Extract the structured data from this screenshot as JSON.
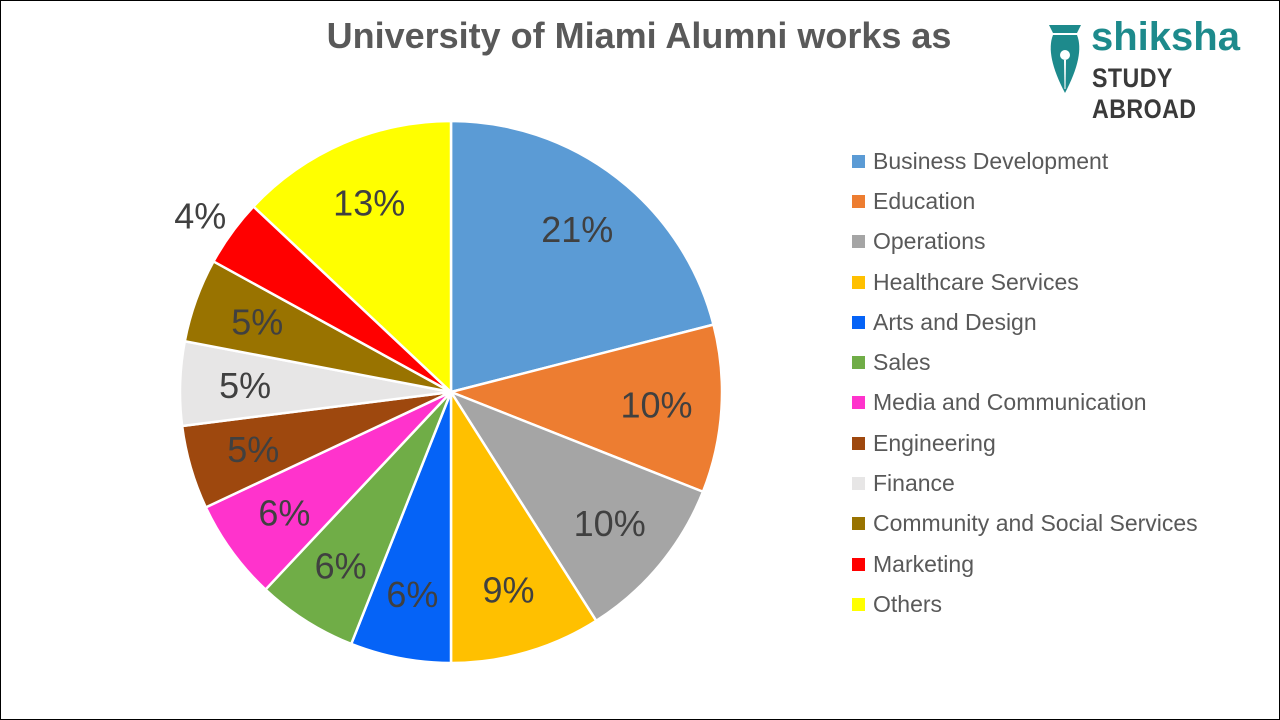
{
  "chart_data": {
    "type": "pie",
    "title": "University of Miami Alumni works as",
    "legend_position": "right",
    "slices": [
      {
        "label": "Business Development",
        "value": 21,
        "display": "21%",
        "color": "#5b9bd5"
      },
      {
        "label": "Education",
        "value": 10,
        "display": "10%",
        "color": "#ed7d31"
      },
      {
        "label": "Operations",
        "value": 10,
        "display": "10%",
        "color": "#a5a5a5"
      },
      {
        "label": "Healthcare Services",
        "value": 9,
        "display": "9%",
        "color": "#ffc000"
      },
      {
        "label": "Arts and Design",
        "value": 6,
        "display": "6%",
        "color": "#0563f7"
      },
      {
        "label": "Sales",
        "value": 6,
        "display": "6%",
        "color": "#70ad47"
      },
      {
        "label": "Media and Communication",
        "value": 6,
        "display": "6%",
        "color": "#ff33cc"
      },
      {
        "label": "Engineering",
        "value": 5,
        "display": "5%",
        "color": "#9e480e"
      },
      {
        "label": "Finance",
        "value": 5,
        "display": "5%",
        "color": "#e7e6e6"
      },
      {
        "label": "Community and Social Services",
        "value": 5,
        "display": "5%",
        "color": "#997300"
      },
      {
        "label": "Marketing",
        "value": 4,
        "display": "4%",
        "color": "#ff0000"
      },
      {
        "label": "Others",
        "value": 13,
        "display": "13%",
        "color": "#ffff00"
      }
    ]
  },
  "logo": {
    "name": "shiksha",
    "tagline": "STUDY ABROAD",
    "icon": "pen-nib-icon",
    "color": "#1d8a8c"
  }
}
